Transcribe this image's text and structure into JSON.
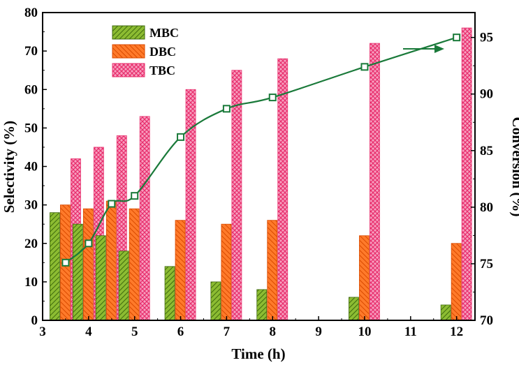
{
  "chart_data": {
    "type": "bar",
    "title": "",
    "xlabel": "Time (h)",
    "ylabel": "Selectivity (%)",
    "y2label": "Conversion (%)",
    "xlim": [
      3,
      12.4
    ],
    "ylim": [
      0,
      80
    ],
    "y2lim": [
      70,
      97.2
    ],
    "x_ticks": [
      3,
      4,
      5,
      6,
      7,
      8,
      9,
      10,
      11,
      12
    ],
    "y_ticks": [
      0,
      10,
      20,
      30,
      40,
      50,
      60,
      70,
      80
    ],
    "y2_ticks": [
      70,
      75,
      80,
      85,
      90,
      95
    ],
    "x": [
      3.5,
      4,
      4.5,
      5,
      6,
      7,
      8,
      10,
      12
    ],
    "series": [
      {
        "name": "MBC",
        "kind": "bar",
        "color": "#6a9c1e",
        "values": [
          28,
          25,
          22,
          18,
          14,
          10,
          8,
          6,
          4
        ]
      },
      {
        "name": "DBC",
        "kind": "bar",
        "color": "#f05a14",
        "values": [
          30,
          29,
          31,
          29,
          26,
          25,
          26,
          22,
          20
        ]
      },
      {
        "name": "TBC",
        "kind": "bar",
        "color": "#f04a84",
        "values": [
          42,
          45,
          48,
          53,
          60,
          65,
          68,
          72,
          76
        ]
      },
      {
        "name": "Conversion",
        "kind": "line",
        "axis": "right",
        "color": "#1a7a3a",
        "values": [
          75.1,
          76.8,
          80.3,
          81.0,
          86.2,
          88.7,
          89.7,
          92.4,
          95.0
        ]
      }
    ],
    "legend_position": "top-left",
    "annotation": "arrow pointing to right axis for conversion curve"
  }
}
